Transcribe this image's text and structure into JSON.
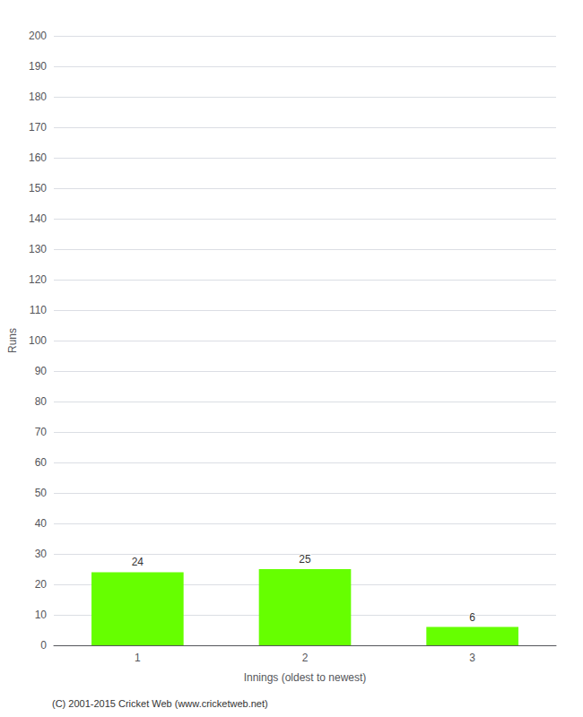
{
  "chart_data": {
    "type": "bar",
    "categories": [
      "1",
      "2",
      "3"
    ],
    "values": [
      24,
      25,
      6
    ],
    "color": "#66ff00",
    "xlabel": "Innings (oldest to newest)",
    "ylabel": "Runs",
    "ylim": [
      0,
      200
    ],
    "yticks": [
      0,
      10,
      20,
      30,
      40,
      50,
      60,
      70,
      80,
      90,
      100,
      110,
      120,
      130,
      140,
      150,
      160,
      170,
      180,
      190,
      200
    ],
    "grid": true,
    "data_labels": true,
    "annotations": [
      "(C) 2001-2015 Cricket Web (www.cricketweb.net)"
    ]
  }
}
